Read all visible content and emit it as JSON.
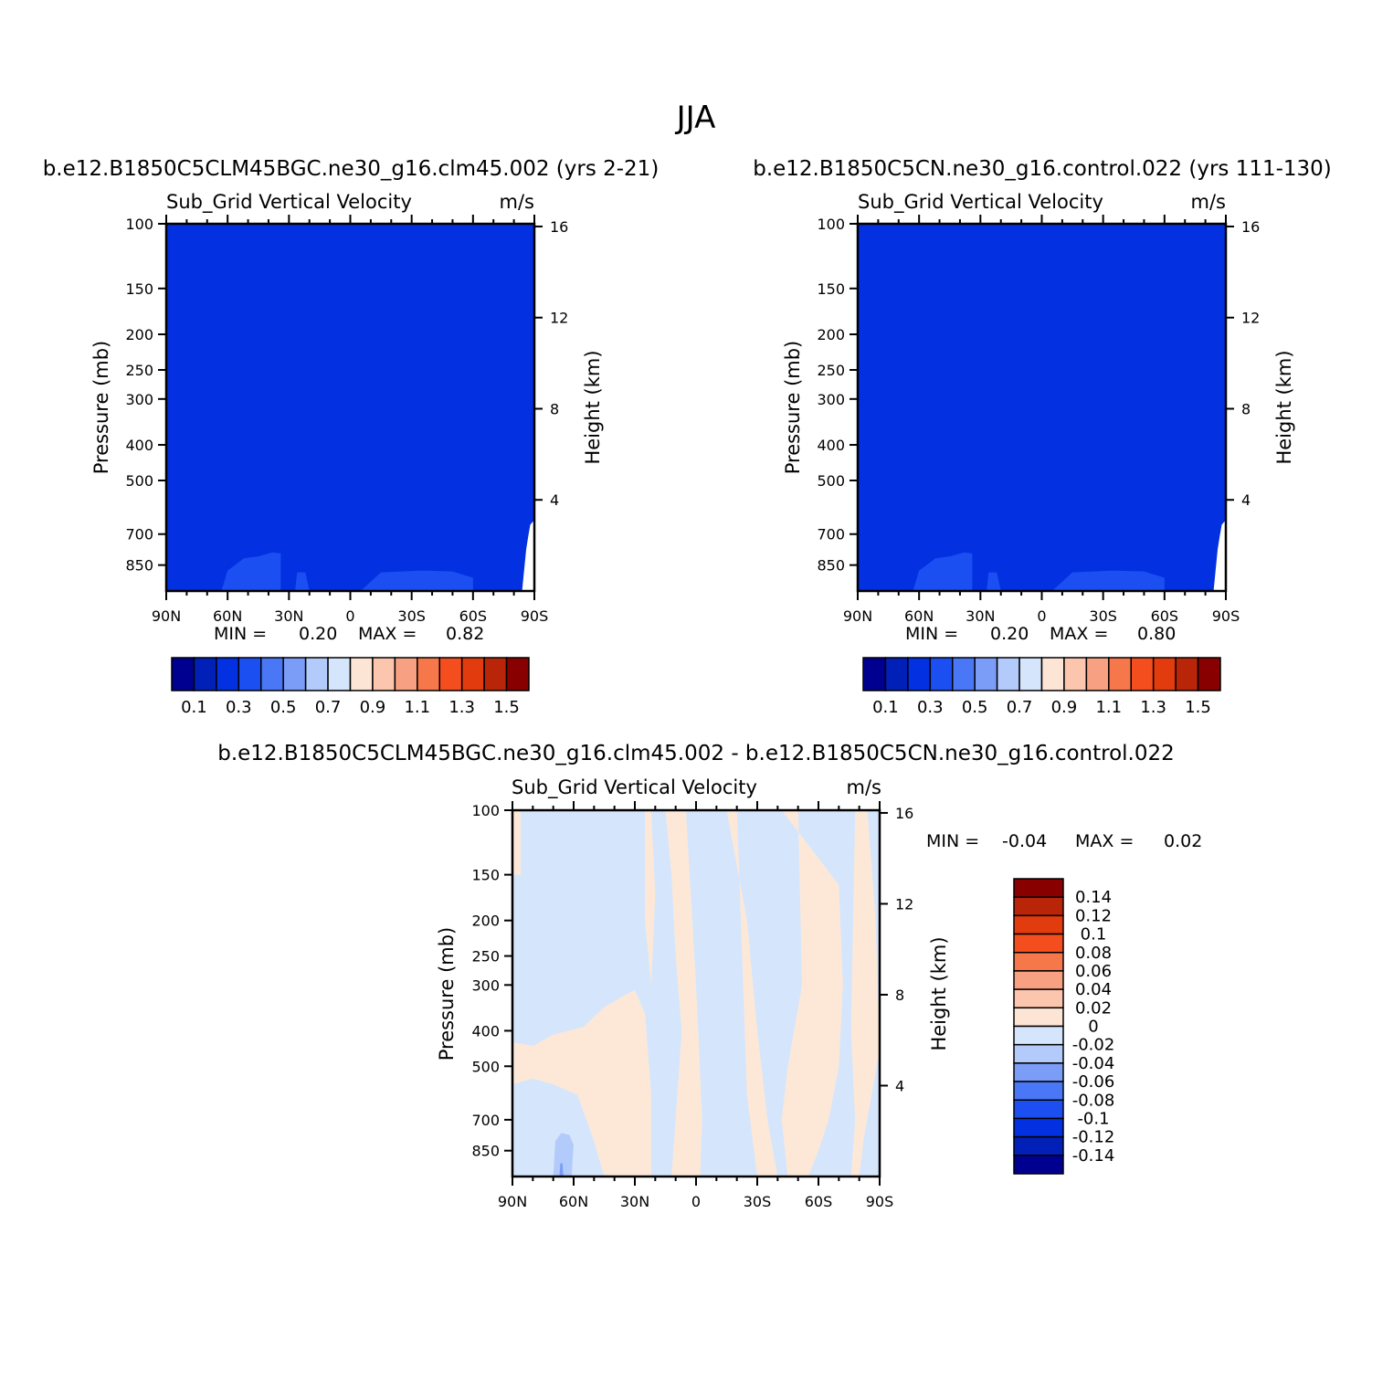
{
  "page_title": "JJA",
  "colors": {
    "field_main": "#0330E0",
    "field_low": "#1C4FF2",
    "field_lighter": "#3A64F5",
    "diff_pos": "#FDE8D8",
    "diff_neg": "#D5E6FC",
    "diff_neg2": "#B3CBFB",
    "diff_neg3": "#7A9DF6"
  },
  "chart_data": [
    {
      "type": "heatmap",
      "panel_title": "b.e12.B1850C5CLM45BGC.ne30_g16.clm45.002 (yrs 2-21)",
      "field_name": "Sub_Grid Vertical Velocity",
      "units": "m/s",
      "xlabel": "",
      "ylabel": "Pressure (mb)",
      "y2label": "Height (km)",
      "x_ticks": [
        "90N",
        "60N",
        "30N",
        "0",
        "30S",
        "60S",
        "90S"
      ],
      "x_range": [
        90,
        -90
      ],
      "y_ticks": [
        100,
        150,
        200,
        250,
        300,
        400,
        500,
        700,
        850
      ],
      "y_range": [
        100,
        1000
      ],
      "y_scale": "log",
      "y2_ticks": [
        16,
        12,
        8,
        4
      ],
      "min_text": "MIN =",
      "min_value": "0.20",
      "max_text": "MAX =",
      "max_value": "0.82",
      "min": 0.2,
      "max": 0.82,
      "dominant_level": "0.3-0.4",
      "colorbar": {
        "orientation": "horizontal",
        "colors": [
          "#000090",
          "#0020B8",
          "#0330E0",
          "#1C4FF2",
          "#4A77F6",
          "#7B9DF7",
          "#B3CBFB",
          "#D5E6FC",
          "#FDE5D5",
          "#FBC5AE",
          "#F8A182",
          "#F6774A",
          "#F44D1E",
          "#E23C0E",
          "#B82508",
          "#880000"
        ],
        "labels": [
          "0.1",
          "0.3",
          "0.5",
          "0.7",
          "0.9",
          "1.1",
          "1.3",
          "1.5"
        ]
      }
    },
    {
      "type": "heatmap",
      "panel_title": "b.e12.B1850C5CN.ne30_g16.control.022 (yrs 111-130)",
      "field_name": "Sub_Grid Vertical Velocity",
      "units": "m/s",
      "xlabel": "",
      "ylabel": "Pressure (mb)",
      "y2label": "Height (km)",
      "x_ticks": [
        "90N",
        "60N",
        "30N",
        "0",
        "30S",
        "60S",
        "90S"
      ],
      "x_range": [
        90,
        -90
      ],
      "y_ticks": [
        100,
        150,
        200,
        250,
        300,
        400,
        500,
        700,
        850
      ],
      "y_range": [
        100,
        1000
      ],
      "y_scale": "log",
      "y2_ticks": [
        16,
        12,
        8,
        4
      ],
      "min_text": "MIN =",
      "min_value": "0.20",
      "max_text": "MAX =",
      "max_value": "0.80",
      "min": 0.2,
      "max": 0.8,
      "dominant_level": "0.3-0.4",
      "colorbar": {
        "orientation": "horizontal",
        "colors": [
          "#000090",
          "#0020B8",
          "#0330E0",
          "#1C4FF2",
          "#4A77F6",
          "#7B9DF7",
          "#B3CBFB",
          "#D5E6FC",
          "#FDE5D5",
          "#FBC5AE",
          "#F8A182",
          "#F6774A",
          "#F44D1E",
          "#E23C0E",
          "#B82508",
          "#880000"
        ],
        "labels": [
          "0.1",
          "0.3",
          "0.5",
          "0.7",
          "0.9",
          "1.1",
          "1.3",
          "1.5"
        ]
      }
    },
    {
      "type": "heatmap",
      "panel_title": "b.e12.B1850C5CLM45BGC.ne30_g16.clm45.002 - b.e12.B1850C5CN.ne30_g16.control.022",
      "field_name": "Sub_Grid Vertical Velocity",
      "units": "m/s",
      "xlabel": "",
      "ylabel": "Pressure (mb)",
      "y2label": "Height (km)",
      "x_ticks": [
        "90N",
        "60N",
        "30N",
        "0",
        "30S",
        "60S",
        "90S"
      ],
      "x_range": [
        90,
        -90
      ],
      "y_ticks": [
        100,
        150,
        200,
        250,
        300,
        400,
        500,
        700,
        850
      ],
      "y_range": [
        100,
        1000
      ],
      "y_scale": "log",
      "y2_ticks": [
        16,
        12,
        8,
        4
      ],
      "min_text": "MIN =",
      "min_value": "-0.04",
      "max_text": "MAX =",
      "max_value": "0.02",
      "min": -0.04,
      "max": 0.02,
      "colorbar": {
        "orientation": "vertical",
        "colors": [
          "#880000",
          "#B82508",
          "#E23C0E",
          "#F44D1E",
          "#F6774A",
          "#F8A182",
          "#FBC5AE",
          "#FDE5D5",
          "#D5E6FC",
          "#B3CBFB",
          "#7B9DF7",
          "#4A77F6",
          "#1C4FF2",
          "#0330E0",
          "#0020B8",
          "#000090"
        ],
        "labels": [
          "0.14",
          "0.12",
          "0.1",
          "0.08",
          "0.06",
          "0.04",
          "0.02",
          "0",
          "-0.02",
          "-0.04",
          "-0.06",
          "-0.08",
          "-0.1",
          "-0.12",
          "-0.14"
        ]
      }
    }
  ]
}
